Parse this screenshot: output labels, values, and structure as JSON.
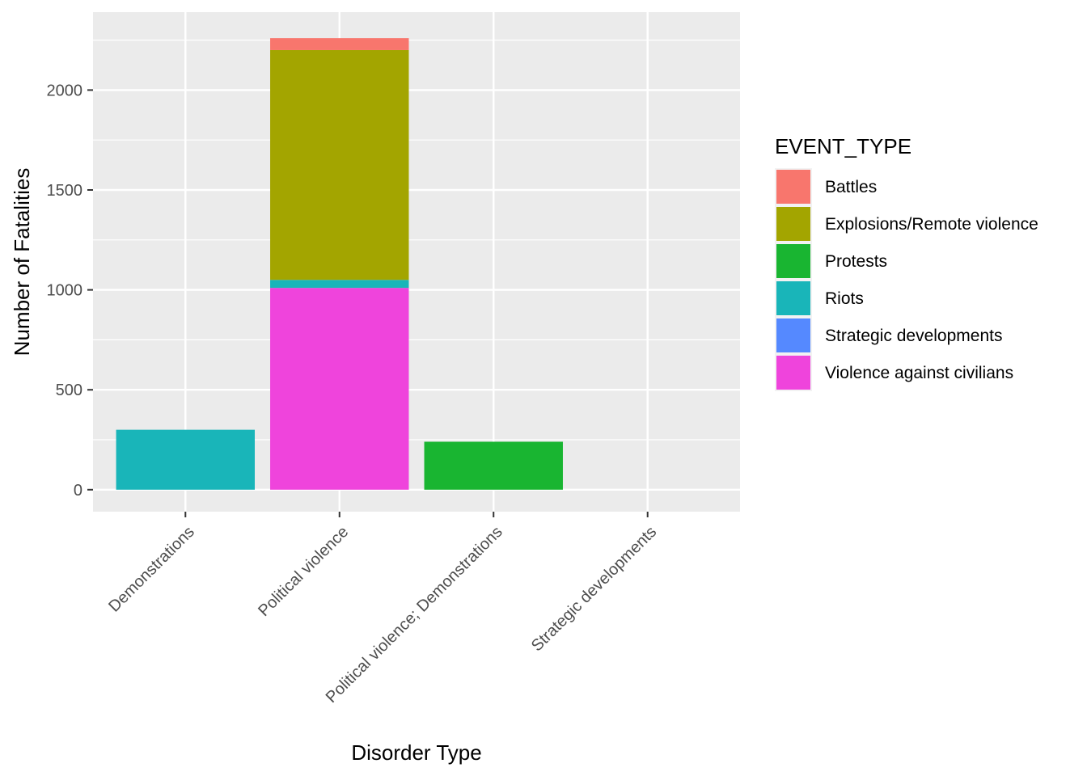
{
  "chart_data": {
    "type": "bar",
    "stacked": true,
    "xlabel": "Disorder Type",
    "ylabel": "Number of Fatalities",
    "ylim": [
      -110,
      2390
    ],
    "yticks": [
      0,
      500,
      1000,
      1500,
      2000
    ],
    "grid": true,
    "legend_position": "right",
    "legend_title": "EVENT_TYPE",
    "categories": [
      "Demonstrations",
      "Political violence",
      "Political violence; Demonstrations",
      "Strategic developments"
    ],
    "series": [
      {
        "name": "Battles",
        "color": "#F8766D",
        "values": [
          0,
          60,
          0,
          0
        ]
      },
      {
        "name": "Explosions/Remote violence",
        "color": "#A3A500",
        "values": [
          0,
          1150,
          0,
          0
        ]
      },
      {
        "name": "Protests",
        "color": "#19B531",
        "values": [
          0,
          0,
          240,
          0
        ]
      },
      {
        "name": "Riots",
        "color": "#19B5B9",
        "values": [
          300,
          40,
          0,
          0
        ]
      },
      {
        "name": "Strategic developments",
        "color": "#5589FF",
        "values": [
          0,
          0,
          0,
          0
        ]
      },
      {
        "name": "Violence against civilians",
        "color": "#EF44DC",
        "values": [
          0,
          1010,
          0,
          0
        ]
      }
    ],
    "stack_order": [
      "Violence against civilians",
      "Strategic developments",
      "Riots",
      "Protests",
      "Explosions/Remote violence",
      "Battles"
    ]
  }
}
